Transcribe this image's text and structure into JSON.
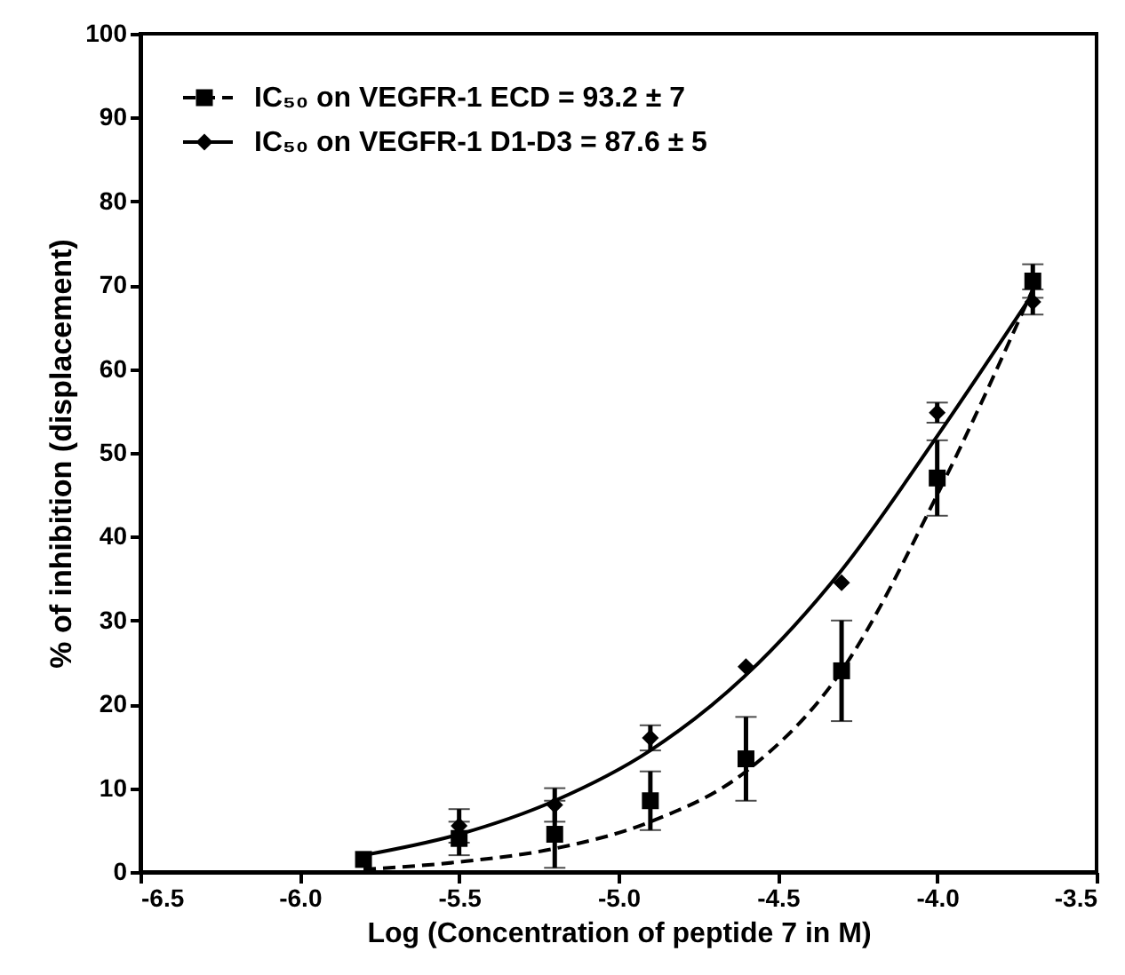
{
  "chart_data": {
    "type": "scatter",
    "xlabel": "Log (Concentration of peptide 7 in M)",
    "ylabel": "% of inhibition (displacement)",
    "xlim": [
      -6.5,
      -3.5
    ],
    "xticks": [
      -6.5,
      {
        "value": -6.0,
        "label": "-6.0"
      },
      -5.5,
      {
        "value": -5.0,
        "label": "-5.0"
      },
      -4.5,
      {
        "value": -4.0,
        "label": "-4.0"
      },
      -3.5
    ],
    "ylim": [
      0,
      100
    ],
    "yticks": [
      0,
      10,
      20,
      30,
      40,
      50,
      60,
      70,
      80,
      90,
      100
    ],
    "grid": false,
    "legend": "top left",
    "series": [
      {
        "name": "IC₅₀ on VEGFR-1 ECD = 93.2 ± 7",
        "marker": "square",
        "line_style": "dashed",
        "color": "#000000",
        "x": [
          -5.8,
          -5.5,
          -5.2,
          -4.9,
          -4.6,
          -4.3,
          -4.0,
          -3.7
        ],
        "values": [
          1.5,
          4,
          4.5,
          8.5,
          13.5,
          24,
          47,
          70.5
        ],
        "errors": [
          null,
          2,
          4,
          3.5,
          5,
          6,
          4.5,
          2
        ]
      },
      {
        "name": "IC₅₀ on VEGFR-1 D1-D3 = 87.6 ± 5",
        "marker": "diamond",
        "line_style": "solid",
        "color": "#000000",
        "x": [
          -5.5,
          -5.2,
          -4.9,
          -4.6,
          -4.3,
          -4.0,
          -3.7
        ],
        "values": [
          5.5,
          8,
          16,
          24.5,
          34.5,
          54.8,
          68
        ],
        "errors": [
          2,
          2,
          1.5,
          null,
          null,
          1.2,
          1.5
        ]
      },
      {
        "type": "line",
        "line_style": "dashed",
        "color": "#000000",
        "x": [
          -5.8,
          -5.5,
          -5.2,
          -4.9,
          -4.6,
          -4.3,
          -4.0,
          -3.7
        ],
        "values": [
          0.3,
          1.2,
          2.8,
          6,
          12,
          24,
          45,
          69.5
        ]
      },
      {
        "type": "line",
        "line_style": "solid",
        "color": "#000000",
        "x": [
          -5.8,
          -5.5,
          -5.2,
          -4.9,
          -4.6,
          -4.3,
          -4.0,
          -3.7
        ],
        "values": [
          2,
          4.5,
          8.5,
          14.5,
          23.5,
          36,
          52,
          69
        ]
      }
    ]
  }
}
